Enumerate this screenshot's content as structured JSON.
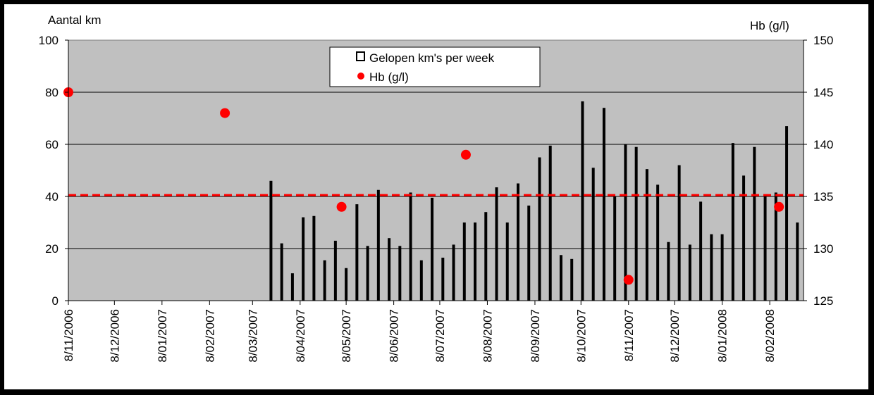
{
  "chart_data": {
    "type": "bar",
    "title": "",
    "y_left": {
      "label": "Aantal km",
      "ylim": [
        0,
        100
      ],
      "ticks": [
        0,
        20,
        40,
        60,
        80,
        100
      ]
    },
    "y_right": {
      "label": "Hb (g/l)",
      "ylim": [
        125,
        150
      ],
      "ticks": [
        125,
        130,
        135,
        140,
        145,
        150
      ]
    },
    "x_axis": {
      "type": "date",
      "range": [
        "2006-11-08",
        "2008-03-01"
      ],
      "tick_labels": [
        "8/11/2006",
        "8/12/2006",
        "8/01/2007",
        "8/02/2007",
        "8/03/2007",
        "8/04/2007",
        "8/05/2007",
        "8/06/2007",
        "8/07/2007",
        "8/08/2007",
        "8/09/2007",
        "8/10/2007",
        "8/11/2007",
        "8/12/2007",
        "8/01/2008",
        "8/02/2008"
      ],
      "tick_dates": [
        "2006-11-08",
        "2006-12-08",
        "2007-01-08",
        "2007-02-08",
        "2007-03-08",
        "2007-04-08",
        "2007-05-08",
        "2007-06-08",
        "2007-07-08",
        "2007-08-08",
        "2007-09-08",
        "2007-10-08",
        "2007-11-08",
        "2007-12-08",
        "2008-01-08",
        "2008-02-08"
      ]
    },
    "series": [
      {
        "name": "Gelopen km's per week",
        "type": "bar",
        "axis": "left",
        "color": "#000000",
        "points": [
          [
            "2007-03-20",
            46
          ],
          [
            "2007-03-27",
            22
          ],
          [
            "2007-04-03",
            10.5
          ],
          [
            "2007-04-10",
            32
          ],
          [
            "2007-04-17",
            32.5
          ],
          [
            "2007-04-24",
            15.5
          ],
          [
            "2007-05-01",
            23
          ],
          [
            "2007-05-08",
            12.5
          ],
          [
            "2007-05-15",
            37
          ],
          [
            "2007-05-22",
            21
          ],
          [
            "2007-05-29",
            42.5
          ],
          [
            "2007-06-05",
            24
          ],
          [
            "2007-06-12",
            21
          ],
          [
            "2007-06-19",
            41.5
          ],
          [
            "2007-06-26",
            15.5
          ],
          [
            "2007-07-03",
            39.5
          ],
          [
            "2007-07-10",
            16.5
          ],
          [
            "2007-07-17",
            21.5
          ],
          [
            "2007-07-24",
            30
          ],
          [
            "2007-07-31",
            30
          ],
          [
            "2007-08-07",
            34
          ],
          [
            "2007-08-14",
            43.5
          ],
          [
            "2007-08-21",
            30
          ],
          [
            "2007-08-28",
            45
          ],
          [
            "2007-09-04",
            36.5
          ],
          [
            "2007-09-11",
            55
          ],
          [
            "2007-09-18",
            59.5
          ],
          [
            "2007-09-25",
            17.5
          ],
          [
            "2007-10-02",
            16
          ],
          [
            "2007-10-09",
            76.5
          ],
          [
            "2007-10-16",
            51
          ],
          [
            "2007-10-23",
            74
          ],
          [
            "2007-10-30",
            40
          ],
          [
            "2007-11-06",
            60
          ],
          [
            "2007-11-13",
            59
          ],
          [
            "2007-11-20",
            50.5
          ],
          [
            "2007-11-27",
            44.5
          ],
          [
            "2007-12-04",
            22.5
          ],
          [
            "2007-12-11",
            52
          ],
          [
            "2007-12-18",
            21.5
          ],
          [
            "2007-12-25",
            38
          ],
          [
            "2008-01-01",
            25.5
          ],
          [
            "2008-01-08",
            25.5
          ],
          [
            "2008-01-15",
            60.5
          ],
          [
            "2008-01-22",
            48
          ],
          [
            "2008-01-29",
            59
          ],
          [
            "2008-02-05",
            40.5
          ],
          [
            "2008-02-12",
            41.5
          ],
          [
            "2008-02-19",
            67
          ],
          [
            "2008-02-26",
            30
          ]
        ]
      },
      {
        "name": "Hb (g/l)",
        "type": "scatter",
        "axis": "right",
        "color": "#ff0000",
        "points": [
          [
            "2006-11-08",
            145
          ],
          [
            "2007-02-18",
            143
          ],
          [
            "2007-05-05",
            134
          ],
          [
            "2007-07-25",
            139
          ],
          [
            "2007-11-08",
            127
          ],
          [
            "2008-02-14",
            134
          ]
        ]
      }
    ],
    "reference_line": {
      "axis": "left",
      "value": 40.5,
      "color": "#ff0000",
      "style": "dashed"
    },
    "legend": {
      "placement": "top-center",
      "entries": [
        "Gelopen km's per week",
        "Hb (g/l)"
      ]
    },
    "grid": true,
    "plot_background": "#c0c0c0"
  }
}
